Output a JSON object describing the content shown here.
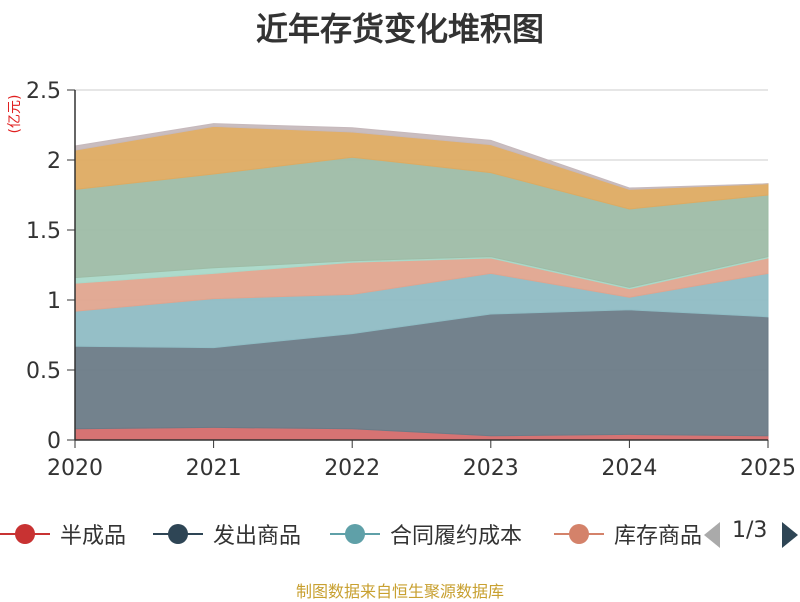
{
  "chart_data": {
    "type": "area",
    "stacked": true,
    "title": "近年存货变化堆积图",
    "ylabel": "(亿元)",
    "x": [
      "2020",
      "2021",
      "2022",
      "2023",
      "2024",
      "2025"
    ],
    "ylim": [
      0,
      2.5
    ],
    "yticks": [
      "0",
      "0.5",
      "1",
      "1.5",
      "2",
      "2.5"
    ],
    "grid": true,
    "series": [
      {
        "name": "半成品",
        "color": "#d46b6b",
        "values": [
          0.08,
          0.09,
          0.08,
          0.03,
          0.04,
          0.03
        ]
      },
      {
        "name": "发出商品",
        "color": "#6b7b87",
        "values": [
          0.59,
          0.57,
          0.68,
          0.87,
          0.89,
          0.85
        ]
      },
      {
        "name": "合同履约成本",
        "color": "#8fbcc4",
        "values": [
          0.25,
          0.35,
          0.28,
          0.29,
          0.09,
          0.31
        ]
      },
      {
        "name": "库存商品",
        "color": "#e0a58f",
        "values": [
          0.2,
          0.18,
          0.23,
          0.11,
          0.06,
          0.11
        ]
      },
      {
        "name": "",
        "color": "#a9d8c8",
        "values": [
          0.04,
          0.04,
          0.01,
          0.01,
          0.01,
          0.01
        ]
      },
      {
        "name": "",
        "color": "#9ebca6",
        "values": [
          0.63,
          0.67,
          0.74,
          0.6,
          0.56,
          0.44
        ]
      },
      {
        "name": "",
        "color": "#deab62",
        "values": [
          0.28,
          0.34,
          0.18,
          0.2,
          0.14,
          0.08
        ]
      },
      {
        "name": "",
        "color": "#c6b9bc",
        "values": [
          0.03,
          0.02,
          0.03,
          0.03,
          0.01,
          0.0
        ]
      }
    ]
  },
  "legend": {
    "items": [
      {
        "label": "半成品",
        "color": "#c83232"
      },
      {
        "label": "发出商品",
        "color": "#2e4555"
      },
      {
        "label": "合同履约成本",
        "color": "#5fa0a8"
      },
      {
        "label": "库存商品",
        "color": "#d4826a"
      }
    ],
    "page": "1/3",
    "prev_icon": "triangle-left-icon",
    "next_icon": "triangle-right-icon"
  },
  "source": "制图数据来自恒生聚源数据库"
}
